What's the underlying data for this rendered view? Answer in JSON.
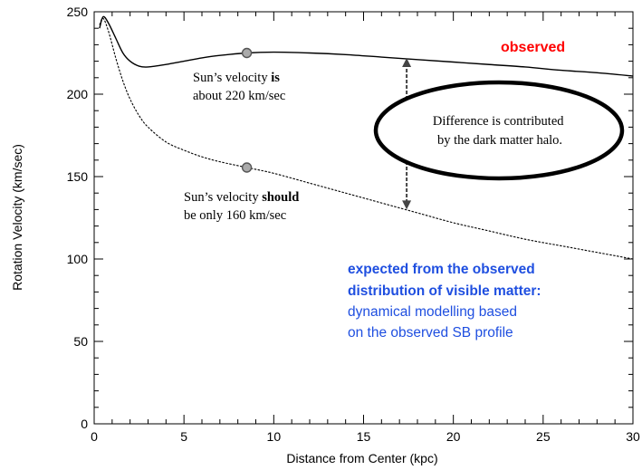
{
  "chart_data": {
    "type": "line",
    "xlabel": "Distance from Center (kpc)",
    "ylabel": "Rotation Velocity (km/sec)",
    "xlim": [
      0,
      30
    ],
    "ylim": [
      0,
      250
    ],
    "x_ticks": [
      0,
      5,
      10,
      15,
      20,
      25,
      30
    ],
    "y_ticks": [
      0,
      50,
      100,
      150,
      200,
      250
    ],
    "grid": false,
    "series": [
      {
        "name": "observed",
        "color": "#000000",
        "style": "solid",
        "x": [
          0.3,
          0.5,
          0.8,
          1.2,
          1.6,
          2.0,
          2.5,
          3.0,
          4.0,
          5.0,
          6.0,
          7.0,
          8.5,
          10,
          12,
          14,
          16,
          18,
          20,
          22,
          24,
          26,
          28,
          30
        ],
        "y": [
          240,
          247,
          243,
          234,
          225,
          220,
          217,
          216.5,
          218,
          220,
          222,
          223.5,
          225,
          225.5,
          225,
          224,
          222.5,
          221,
          219.5,
          218,
          216.5,
          214.5,
          213,
          211
        ]
      },
      {
        "name": "expected from the observed distribution of visible matter",
        "color": "#000000",
        "style": "dashed",
        "x": [
          0.3,
          0.5,
          0.8,
          1.2,
          1.6,
          2.0,
          2.5,
          3.0,
          4.0,
          5.0,
          6.0,
          7.0,
          8.5,
          10,
          12,
          14,
          16,
          18,
          20,
          22,
          24,
          26,
          28,
          30
        ],
        "y": [
          242,
          246,
          238,
          222,
          208,
          197,
          187,
          180,
          171,
          166,
          162,
          159,
          155.5,
          152,
          146,
          140,
          134,
          128,
          122,
          117,
          112,
          108,
          104,
          100
        ]
      }
    ],
    "markers": [
      {
        "x": 8.5,
        "y": 225
      },
      {
        "x": 8.5,
        "y": 155.5
      }
    ],
    "difference_arrow": {
      "x": 17.4,
      "y_top": 222,
      "y_bottom": 130
    },
    "annotations": {
      "sun_is": {
        "line1_pre": "Sun’s velocity ",
        "line1_bold": "is",
        "line2": "about 220 km/sec"
      },
      "sun_should": {
        "line1_pre": "Sun’s velocity ",
        "line1_bold": "should",
        "line2": "be only 160 km/sec"
      },
      "halo": {
        "line1": "Difference is contributed",
        "line2": "by the dark matter halo."
      },
      "observed": {
        "text": "observed",
        "color": "#ff0000"
      },
      "expected": {
        "color": "#1f4fe0",
        "line1": "expected from the observed",
        "line2": "distribution of visible matter:",
        "line3": "dynamical modelling based",
        "line4": "on the observed SB profile"
      }
    }
  }
}
